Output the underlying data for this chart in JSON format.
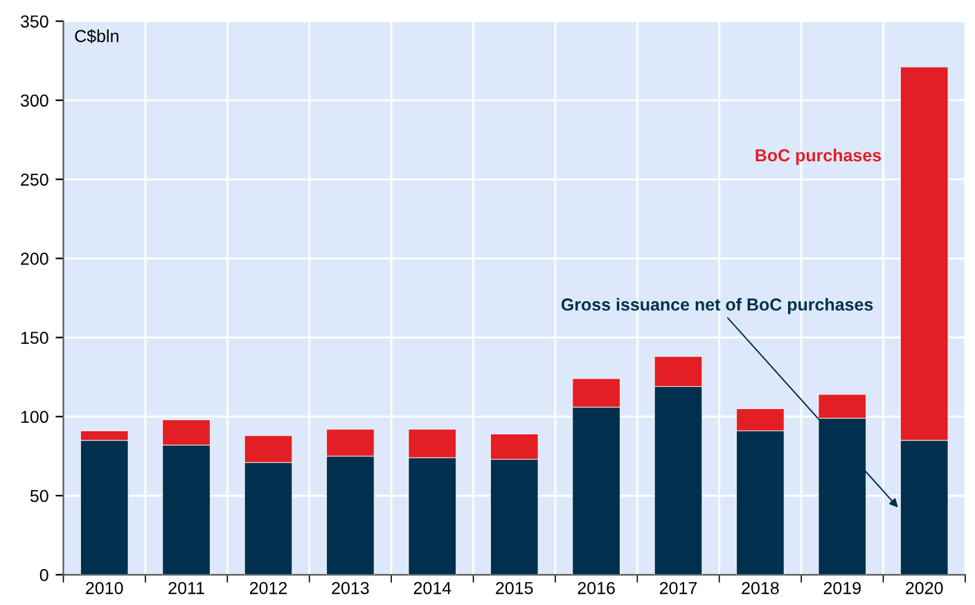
{
  "chart_data": {
    "type": "bar",
    "stacked": true,
    "ylabel": "C$bln",
    "categories": [
      "2010",
      "2011",
      "2012",
      "2013",
      "2014",
      "2015",
      "2016",
      "2017",
      "2018",
      "2019",
      "2020"
    ],
    "series": [
      {
        "name": "Gross issuance net of BoC purchases",
        "color": "#00304d",
        "values": [
          85,
          82,
          71,
          75,
          74,
          73,
          106,
          119,
          91,
          99,
          85
        ]
      },
      {
        "name": "BoC purchases",
        "color": "#e31e24",
        "values": [
          6,
          16,
          17,
          17,
          18,
          16,
          18,
          19,
          14,
          15,
          236
        ]
      }
    ],
    "ylim": [
      0,
      350
    ],
    "yticks": [
      0,
      50,
      100,
      150,
      200,
      250,
      300,
      350
    ],
    "grid": true,
    "legend": false
  }
}
